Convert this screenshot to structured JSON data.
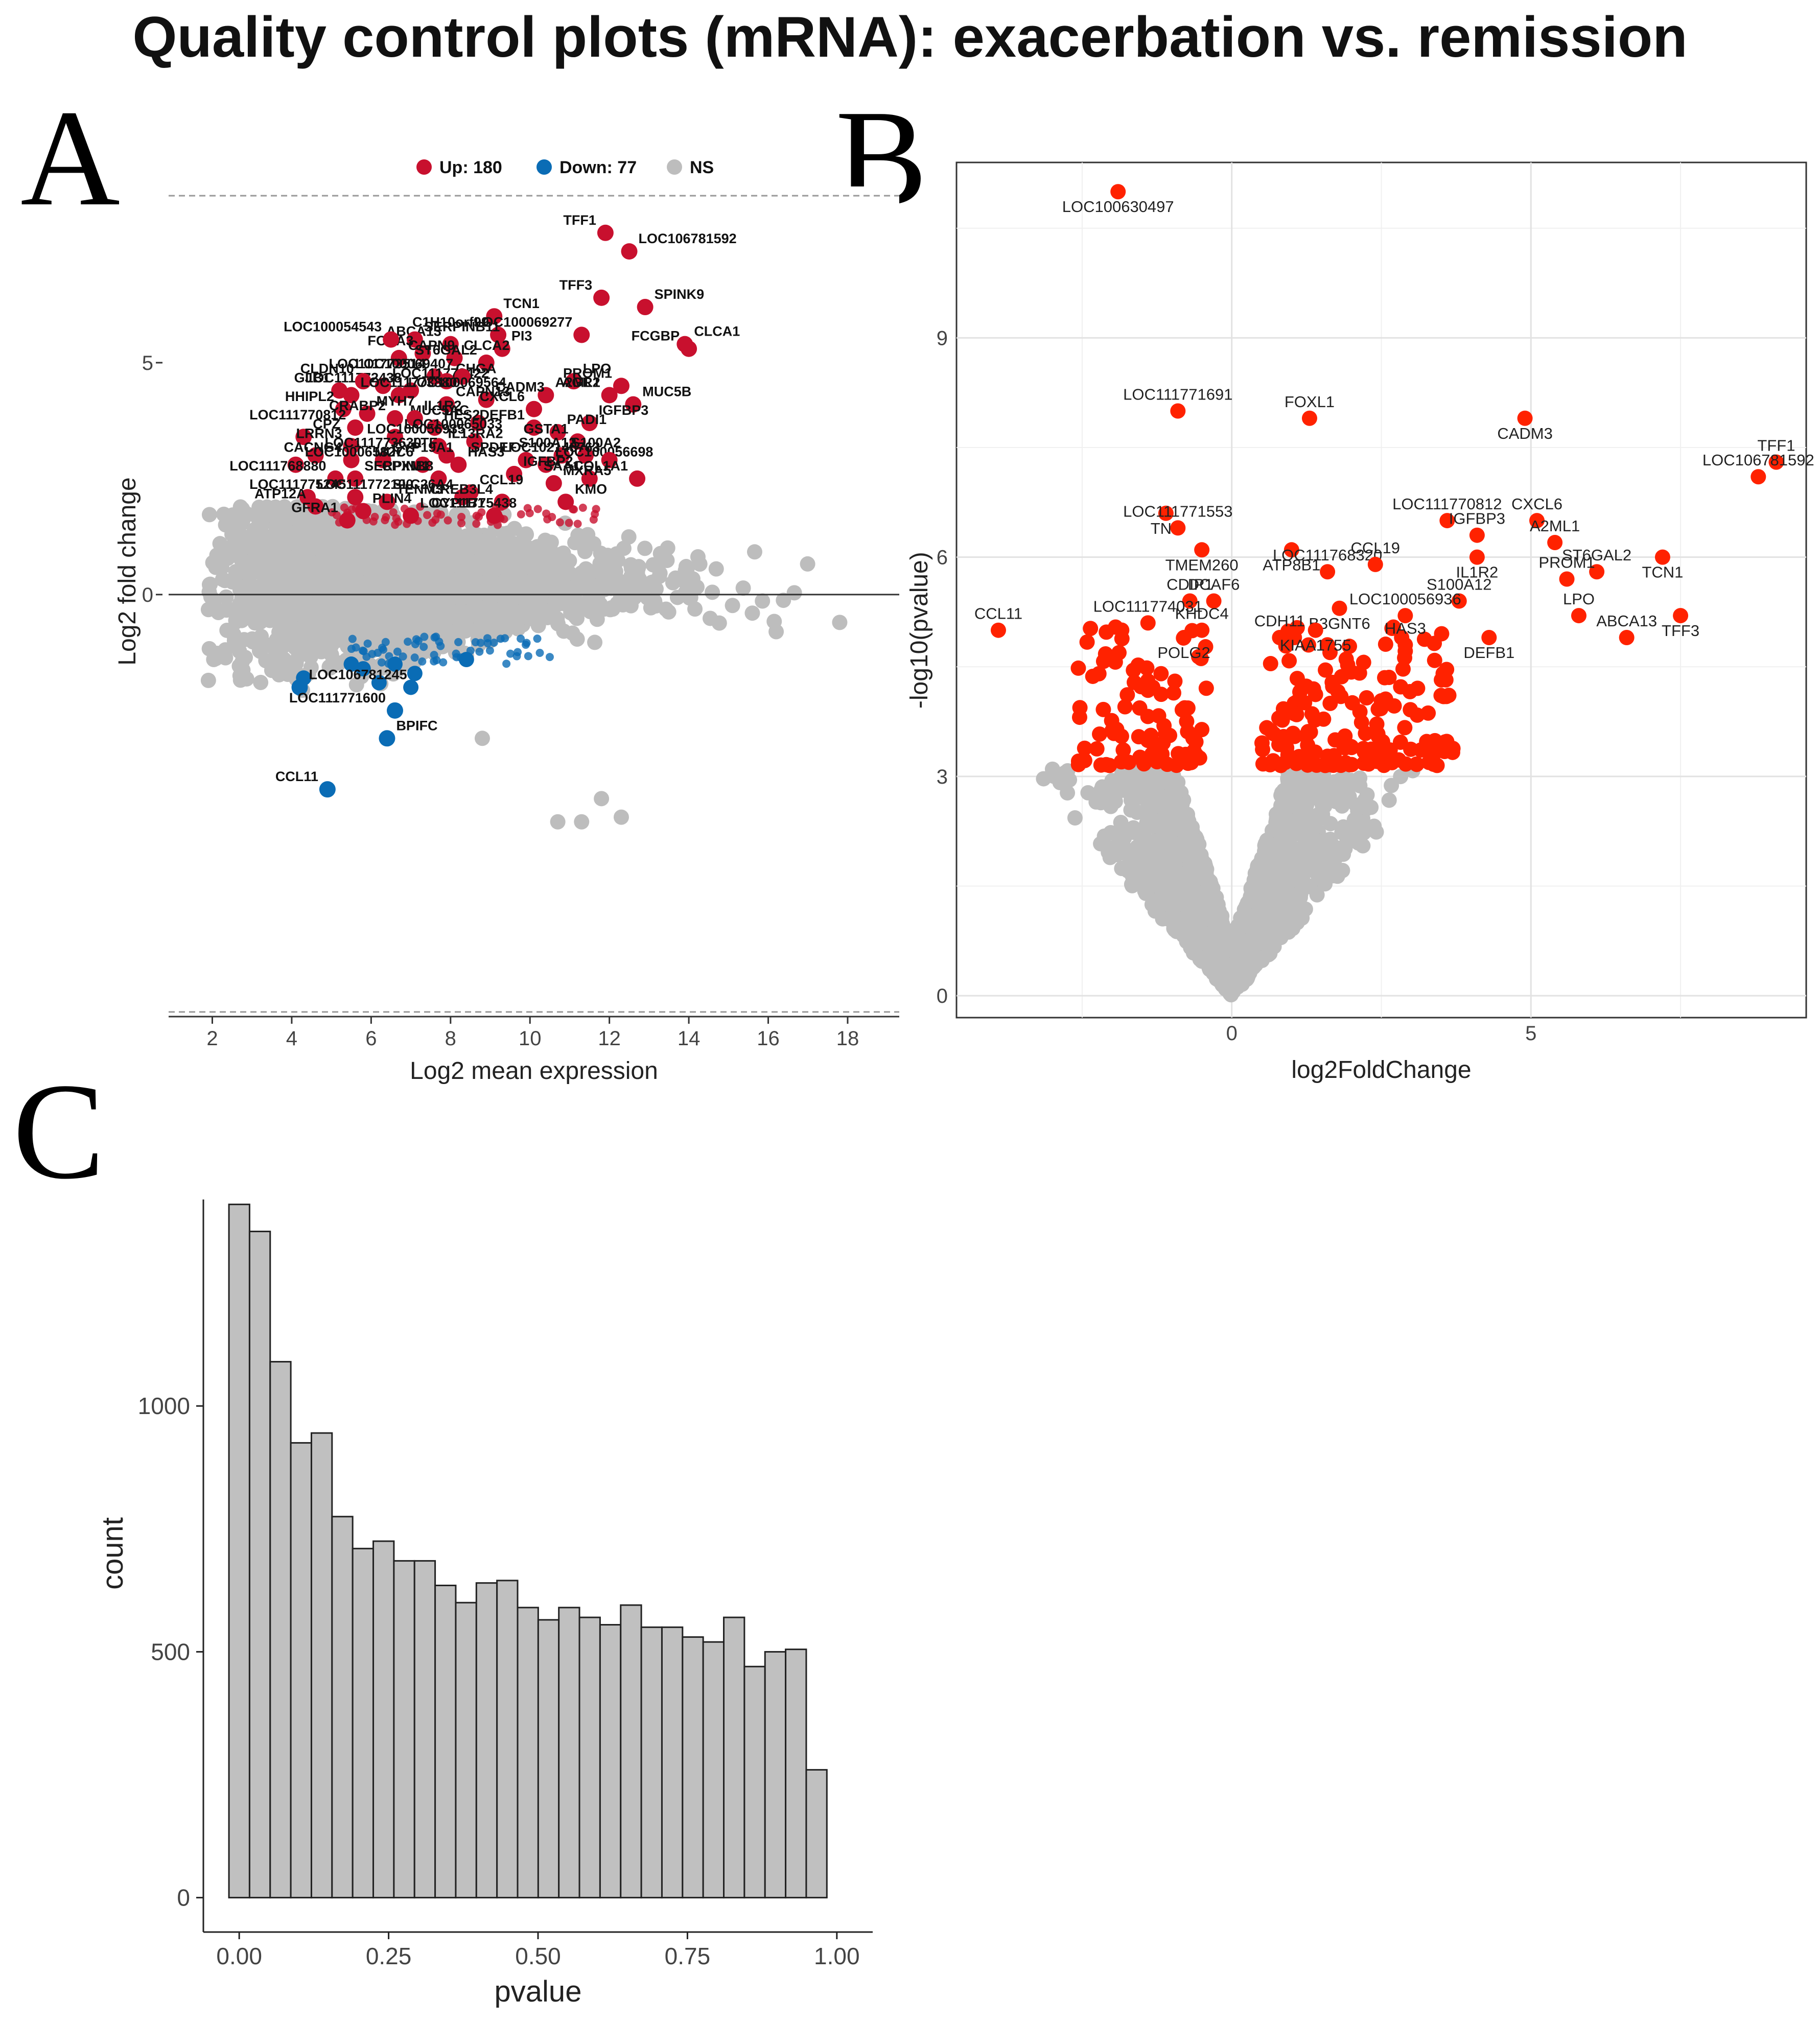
{
  "title": "Quality control plots (mRNA): exacerbation vs. remission",
  "panel_labels": [
    "A",
    "B",
    "C"
  ],
  "colors": {
    "up": "#c8102e",
    "down": "#0a6cb5",
    "ns": "#bdbdbd",
    "volcano_sig": "#ff2200",
    "hist_fill": "#c0c0c0",
    "hist_edge": "#222222"
  },
  "chart_data": [
    {
      "panel": "A",
      "type": "scatter",
      "subtype": "MA plot",
      "xlabel": "Log2 mean expression",
      "ylabel": "Log2 fold change",
      "xlim": [
        0.9,
        19.3
      ],
      "ylim": [
        -9.1,
        8.8
      ],
      "xticks": [
        2,
        4,
        6,
        8,
        10,
        12,
        14,
        16,
        18
      ],
      "yticks": [
        0,
        5
      ],
      "hlines_dashed": [
        8.6,
        -9.0
      ],
      "hline_solid": 0,
      "legend": [
        {
          "key": "up",
          "label": "Up: 180"
        },
        {
          "key": "down",
          "label": "Down: 77"
        },
        {
          "key": "ns",
          "label": "NS"
        }
      ],
      "labeled_points": [
        {
          "gene": "TFF1",
          "x": 11.9,
          "y": 7.8,
          "group": "up"
        },
        {
          "gene": "LOC106781592",
          "x": 12.5,
          "y": 7.4,
          "group": "up"
        },
        {
          "gene": "TFF3",
          "x": 11.8,
          "y": 6.4,
          "group": "up"
        },
        {
          "gene": "TCN1",
          "x": 9.1,
          "y": 6.0,
          "group": "up"
        },
        {
          "gene": "LOC100069277",
          "x": 11.3,
          "y": 5.6,
          "group": "up"
        },
        {
          "gene": "CLCA1",
          "x": 13.9,
          "y": 5.4,
          "group": "up"
        },
        {
          "gene": "FCGBP",
          "x": 14.0,
          "y": 5.3,
          "group": "up"
        },
        {
          "gene": "SPINK9",
          "x": 12.9,
          "y": 6.2,
          "group": "up"
        },
        {
          "gene": "C1H10orf99",
          "x": 9.2,
          "y": 5.6,
          "group": "up"
        },
        {
          "gene": "PI3",
          "x": 9.3,
          "y": 5.3,
          "group": "up"
        },
        {
          "gene": "ABCA13",
          "x": 8.0,
          "y": 5.4,
          "group": "up"
        },
        {
          "gene": "SERPINB11",
          "x": 7.1,
          "y": 5.5,
          "group": "up"
        },
        {
          "gene": "FOXA3",
          "x": 7.3,
          "y": 5.2,
          "group": "up"
        },
        {
          "gene": "CLCA2",
          "x": 8.1,
          "y": 5.1,
          "group": "up"
        },
        {
          "gene": "ST6GAL2",
          "x": 8.9,
          "y": 5.0,
          "group": "up"
        },
        {
          "gene": "LPO",
          "x": 11.1,
          "y": 4.6,
          "group": "up"
        },
        {
          "gene": "PROM1",
          "x": 12.3,
          "y": 4.5,
          "group": "up"
        },
        {
          "gene": "MUC5B",
          "x": 12.6,
          "y": 4.1,
          "group": "up"
        },
        {
          "gene": "AGR2",
          "x": 12.0,
          "y": 4.3,
          "group": "up"
        },
        {
          "gene": "A2ML1",
          "x": 10.4,
          "y": 4.3,
          "group": "up"
        },
        {
          "gene": "LOC100054543",
          "x": 6.5,
          "y": 5.5,
          "group": "up"
        },
        {
          "gene": "CAPN9",
          "x": 6.7,
          "y": 5.1,
          "group": "up"
        },
        {
          "gene": "LOC111773514",
          "x": 7.6,
          "y": 4.7,
          "group": "up"
        },
        {
          "gene": "LOC111773422",
          "x": 6.3,
          "y": 4.5,
          "group": "up"
        },
        {
          "gene": "LOC111772438",
          "x": 7.0,
          "y": 4.4,
          "group": "up"
        },
        {
          "gene": "CHGA",
          "x": 7.9,
          "y": 4.6,
          "group": "up"
        },
        {
          "gene": "LOC100069407",
          "x": 8.3,
          "y": 4.7,
          "group": "up"
        },
        {
          "gene": "CADM3",
          "x": 8.9,
          "y": 4.2,
          "group": "up"
        },
        {
          "gene": "CXCL6",
          "x": 10.1,
          "y": 4.0,
          "group": "up"
        },
        {
          "gene": "CAPN13",
          "x": 7.9,
          "y": 4.1,
          "group": "up"
        },
        {
          "gene": "MUC5AC",
          "x": 8.7,
          "y": 3.7,
          "group": "up"
        },
        {
          "gene": "IL1R2",
          "x": 7.1,
          "y": 3.8,
          "group": "up"
        },
        {
          "gene": "DEFB1",
          "x": 10.1,
          "y": 3.6,
          "group": "up"
        },
        {
          "gene": "IGFBP3",
          "x": 11.5,
          "y": 3.7,
          "group": "up"
        },
        {
          "gene": "CLDN10",
          "x": 5.8,
          "y": 4.6,
          "group": "up"
        },
        {
          "gene": "LOC100069564",
          "x": 6.7,
          "y": 4.3,
          "group": "up"
        },
        {
          "gene": "GJB1",
          "x": 5.2,
          "y": 4.4,
          "group": "up"
        },
        {
          "gene": "LOC111773880",
          "x": 5.5,
          "y": 4.3,
          "group": "up"
        },
        {
          "gene": "HHIPL2",
          "x": 5.3,
          "y": 4.0,
          "group": "up"
        },
        {
          "gene": "MYH7",
          "x": 5.9,
          "y": 3.9,
          "group": "up"
        },
        {
          "gene": "CRABP2",
          "x": 6.6,
          "y": 3.8,
          "group": "up"
        },
        {
          "gene": "HES2",
          "x": 7.6,
          "y": 3.6,
          "group": "up"
        },
        {
          "gene": "LOC111770812",
          "x": 5.6,
          "y": 3.6,
          "group": "up"
        },
        {
          "gene": "LOC100065033",
          "x": 6.6,
          "y": 3.4,
          "group": "up"
        },
        {
          "gene": "LOC100056935",
          "x": 8.6,
          "y": 3.3,
          "group": "up"
        },
        {
          "gene": "PADI1",
          "x": 10.7,
          "y": 3.5,
          "group": "up"
        },
        {
          "gene": "GSTA1",
          "x": 11.2,
          "y": 3.3,
          "group": "up"
        },
        {
          "gene": "CPZ",
          "x": 4.3,
          "y": 3.4,
          "group": "up"
        },
        {
          "gene": "LRRN3",
          "x": 5.5,
          "y": 3.2,
          "group": "up"
        },
        {
          "gene": "IL13RA2",
          "x": 7.7,
          "y": 3.2,
          "group": "up"
        },
        {
          "gene": "LTF",
          "x": 7.9,
          "y": 3.0,
          "group": "up"
        },
        {
          "gene": "S100A2",
          "x": 10.8,
          "y": 3.0,
          "group": "up"
        },
        {
          "gene": "S100A12",
          "x": 11.4,
          "y": 3.0,
          "group": "up"
        },
        {
          "gene": "LOC111773630",
          "x": 4.6,
          "y": 3.0,
          "group": "up"
        },
        {
          "gene": "CACNG4",
          "x": 5.5,
          "y": 2.9,
          "group": "up"
        },
        {
          "gene": "CYP19A1",
          "x": 6.3,
          "y": 2.9,
          "group": "up"
        },
        {
          "gene": "MUC6",
          "x": 7.3,
          "y": 2.8,
          "group": "up"
        },
        {
          "gene": "HAS3",
          "x": 8.2,
          "y": 2.8,
          "group": "up"
        },
        {
          "gene": "SPDEF",
          "x": 9.9,
          "y": 2.9,
          "group": "up"
        },
        {
          "gene": "LOC100056698",
          "x": 10.4,
          "y": 2.8,
          "group": "up"
        },
        {
          "gene": "LOC102148763",
          "x": 12.0,
          "y": 2.9,
          "group": "up"
        },
        {
          "gene": "LOC100065827",
          "x": 4.1,
          "y": 2.8,
          "group": "up"
        },
        {
          "gene": "LOC111768880",
          "x": 5.1,
          "y": 2.5,
          "group": "up"
        },
        {
          "gene": "SERPINB8",
          "x": 5.6,
          "y": 2.5,
          "group": "up"
        },
        {
          "gene": "CPXM1",
          "x": 7.7,
          "y": 2.5,
          "group": "up"
        },
        {
          "gene": "IGFBP2",
          "x": 9.6,
          "y": 2.6,
          "group": "up"
        },
        {
          "gene": "SAA1",
          "x": 11.5,
          "y": 2.5,
          "group": "up"
        },
        {
          "gene": "MXRA5",
          "x": 10.6,
          "y": 2.4,
          "group": "up"
        },
        {
          "gene": "COL1A1",
          "x": 12.7,
          "y": 2.5,
          "group": "up"
        },
        {
          "gene": "LOC111772100",
          "x": 4.4,
          "y": 2.1,
          "group": "up"
        },
        {
          "gene": "LOC111775245",
          "x": 5.6,
          "y": 2.1,
          "group": "up"
        },
        {
          "gene": "TENM3",
          "x": 6.4,
          "y": 2.0,
          "group": "up"
        },
        {
          "gene": "SLC26A4",
          "x": 8.3,
          "y": 2.1,
          "group": "up"
        },
        {
          "gene": "CCL19",
          "x": 8.5,
          "y": 2.2,
          "group": "up"
        },
        {
          "gene": "CREB3L4",
          "x": 9.3,
          "y": 2.0,
          "group": "up"
        },
        {
          "gene": "KMO",
          "x": 10.9,
          "y": 2.0,
          "group": "up"
        },
        {
          "gene": "ATP12A",
          "x": 4.6,
          "y": 1.9,
          "group": "up"
        },
        {
          "gene": "PLIN4",
          "x": 5.8,
          "y": 1.8,
          "group": "up"
        },
        {
          "gene": "GFRA1",
          "x": 5.4,
          "y": 1.6,
          "group": "up"
        },
        {
          "gene": "LOC111775438",
          "x": 7.0,
          "y": 1.7,
          "group": "up"
        },
        {
          "gene": "CYP1B1",
          "x": 9.1,
          "y": 1.7,
          "group": "up"
        },
        {
          "gene": "LOC106781245",
          "x": 4.2,
          "y": -2.0,
          "group": "down"
        },
        {
          "gene": "LOC111771600",
          "x": 6.6,
          "y": -2.5,
          "group": "down"
        },
        {
          "gene": "BPIFC",
          "x": 6.4,
          "y": -3.1,
          "group": "down"
        },
        {
          "gene": "CCL11",
          "x": 4.9,
          "y": -4.2,
          "group": "down"
        }
      ]
    },
    {
      "panel": "B",
      "type": "scatter",
      "subtype": "volcano",
      "xlabel": "log2FoldChange",
      "ylabel": "-log10(pvalue)",
      "xlim": [
        -4.6,
        9.6
      ],
      "ylim": [
        -0.3,
        11.4
      ],
      "xticks": [
        0,
        5
      ],
      "yticks": [
        0,
        3,
        6,
        9
      ],
      "labeled_points": [
        {
          "gene": "LOC100630497",
          "x": -1.9,
          "y": 11.0
        },
        {
          "gene": "LOC111771691",
          "x": -0.9,
          "y": 8.0
        },
        {
          "gene": "FOXL1",
          "x": 1.3,
          "y": 7.9
        },
        {
          "gene": "CADM3",
          "x": 4.9,
          "y": 7.9
        },
        {
          "gene": "TFF1",
          "x": 9.1,
          "y": 7.3
        },
        {
          "gene": "LOC106781592",
          "x": 8.8,
          "y": 7.1
        },
        {
          "gene": "TNF",
          "x": -1.1,
          "y": 6.6
        },
        {
          "gene": "LOC111770812",
          "x": 3.6,
          "y": 6.5
        },
        {
          "gene": "CXCL6",
          "x": 5.1,
          "y": 6.5
        },
        {
          "gene": "ATP8B1",
          "x": 1.0,
          "y": 6.1
        },
        {
          "gene": "LOC111771553",
          "x": -0.9,
          "y": 6.4
        },
        {
          "gene": "IGFBP3",
          "x": 4.1,
          "y": 6.3
        },
        {
          "gene": "TMEM260",
          "x": -0.5,
          "y": 6.1
        },
        {
          "gene": "LOC111768320",
          "x": 1.6,
          "y": 5.8
        },
        {
          "gene": "CCL19",
          "x": 2.4,
          "y": 5.9
        },
        {
          "gene": "IL1R2",
          "x": 4.1,
          "y": 6.0
        },
        {
          "gene": "A2ML1",
          "x": 5.4,
          "y": 6.2
        },
        {
          "gene": "ST6GAL2",
          "x": 6.1,
          "y": 5.8
        },
        {
          "gene": "TCN1",
          "x": 7.2,
          "y": 6.0
        },
        {
          "gene": "CDIP1",
          "x": -0.7,
          "y": 5.4
        },
        {
          "gene": "DCAF6",
          "x": -0.3,
          "y": 5.4
        },
        {
          "gene": "B3GNT6",
          "x": 1.8,
          "y": 5.3
        },
        {
          "gene": "S100A12",
          "x": 3.8,
          "y": 5.4
        },
        {
          "gene": "PROM1",
          "x": 5.6,
          "y": 5.7
        },
        {
          "gene": "TFF3",
          "x": 7.5,
          "y": 5.2
        },
        {
          "gene": "CCL11",
          "x": -3.9,
          "y": 5.0
        },
        {
          "gene": "LOC111774031",
          "x": -1.4,
          "y": 5.1
        },
        {
          "gene": "POLG2",
          "x": -0.8,
          "y": 4.9
        },
        {
          "gene": "KHDC4",
          "x": -0.5,
          "y": 5.0
        },
        {
          "gene": "CDH11",
          "x": 0.8,
          "y": 4.9
        },
        {
          "gene": "KIAA1755",
          "x": 1.4,
          "y": 5.0
        },
        {
          "gene": "LOC100056936",
          "x": 2.9,
          "y": 5.2
        },
        {
          "gene": "HAS3",
          "x": 2.9,
          "y": 4.8
        },
        {
          "gene": "DEFB1",
          "x": 4.3,
          "y": 4.9
        },
        {
          "gene": "LPO",
          "x": 5.8,
          "y": 5.2
        },
        {
          "gene": "ABCA13",
          "x": 6.6,
          "y": 4.9
        }
      ]
    },
    {
      "panel": "C",
      "type": "bar",
      "subtype": "histogram",
      "xlabel": "pvalue",
      "ylabel": "count",
      "xlim": [
        -0.06,
        1.06
      ],
      "ylim": [
        -70,
        1420
      ],
      "xticks": [
        0.0,
        0.25,
        0.5,
        0.75,
        1.0
      ],
      "xtick_labels": [
        "0.00",
        "0.25",
        "0.50",
        "0.75",
        "1.00"
      ],
      "yticks": [
        0,
        500,
        1000
      ],
      "bin_width": 0.0345,
      "bin_start": -0.0172,
      "values": [
        1410,
        1355,
        1090,
        925,
        945,
        775,
        710,
        725,
        685,
        685,
        635,
        600,
        640,
        645,
        590,
        565,
        590,
        570,
        555,
        595,
        550,
        550,
        530,
        520,
        570,
        470,
        500,
        505,
        260
      ]
    }
  ]
}
